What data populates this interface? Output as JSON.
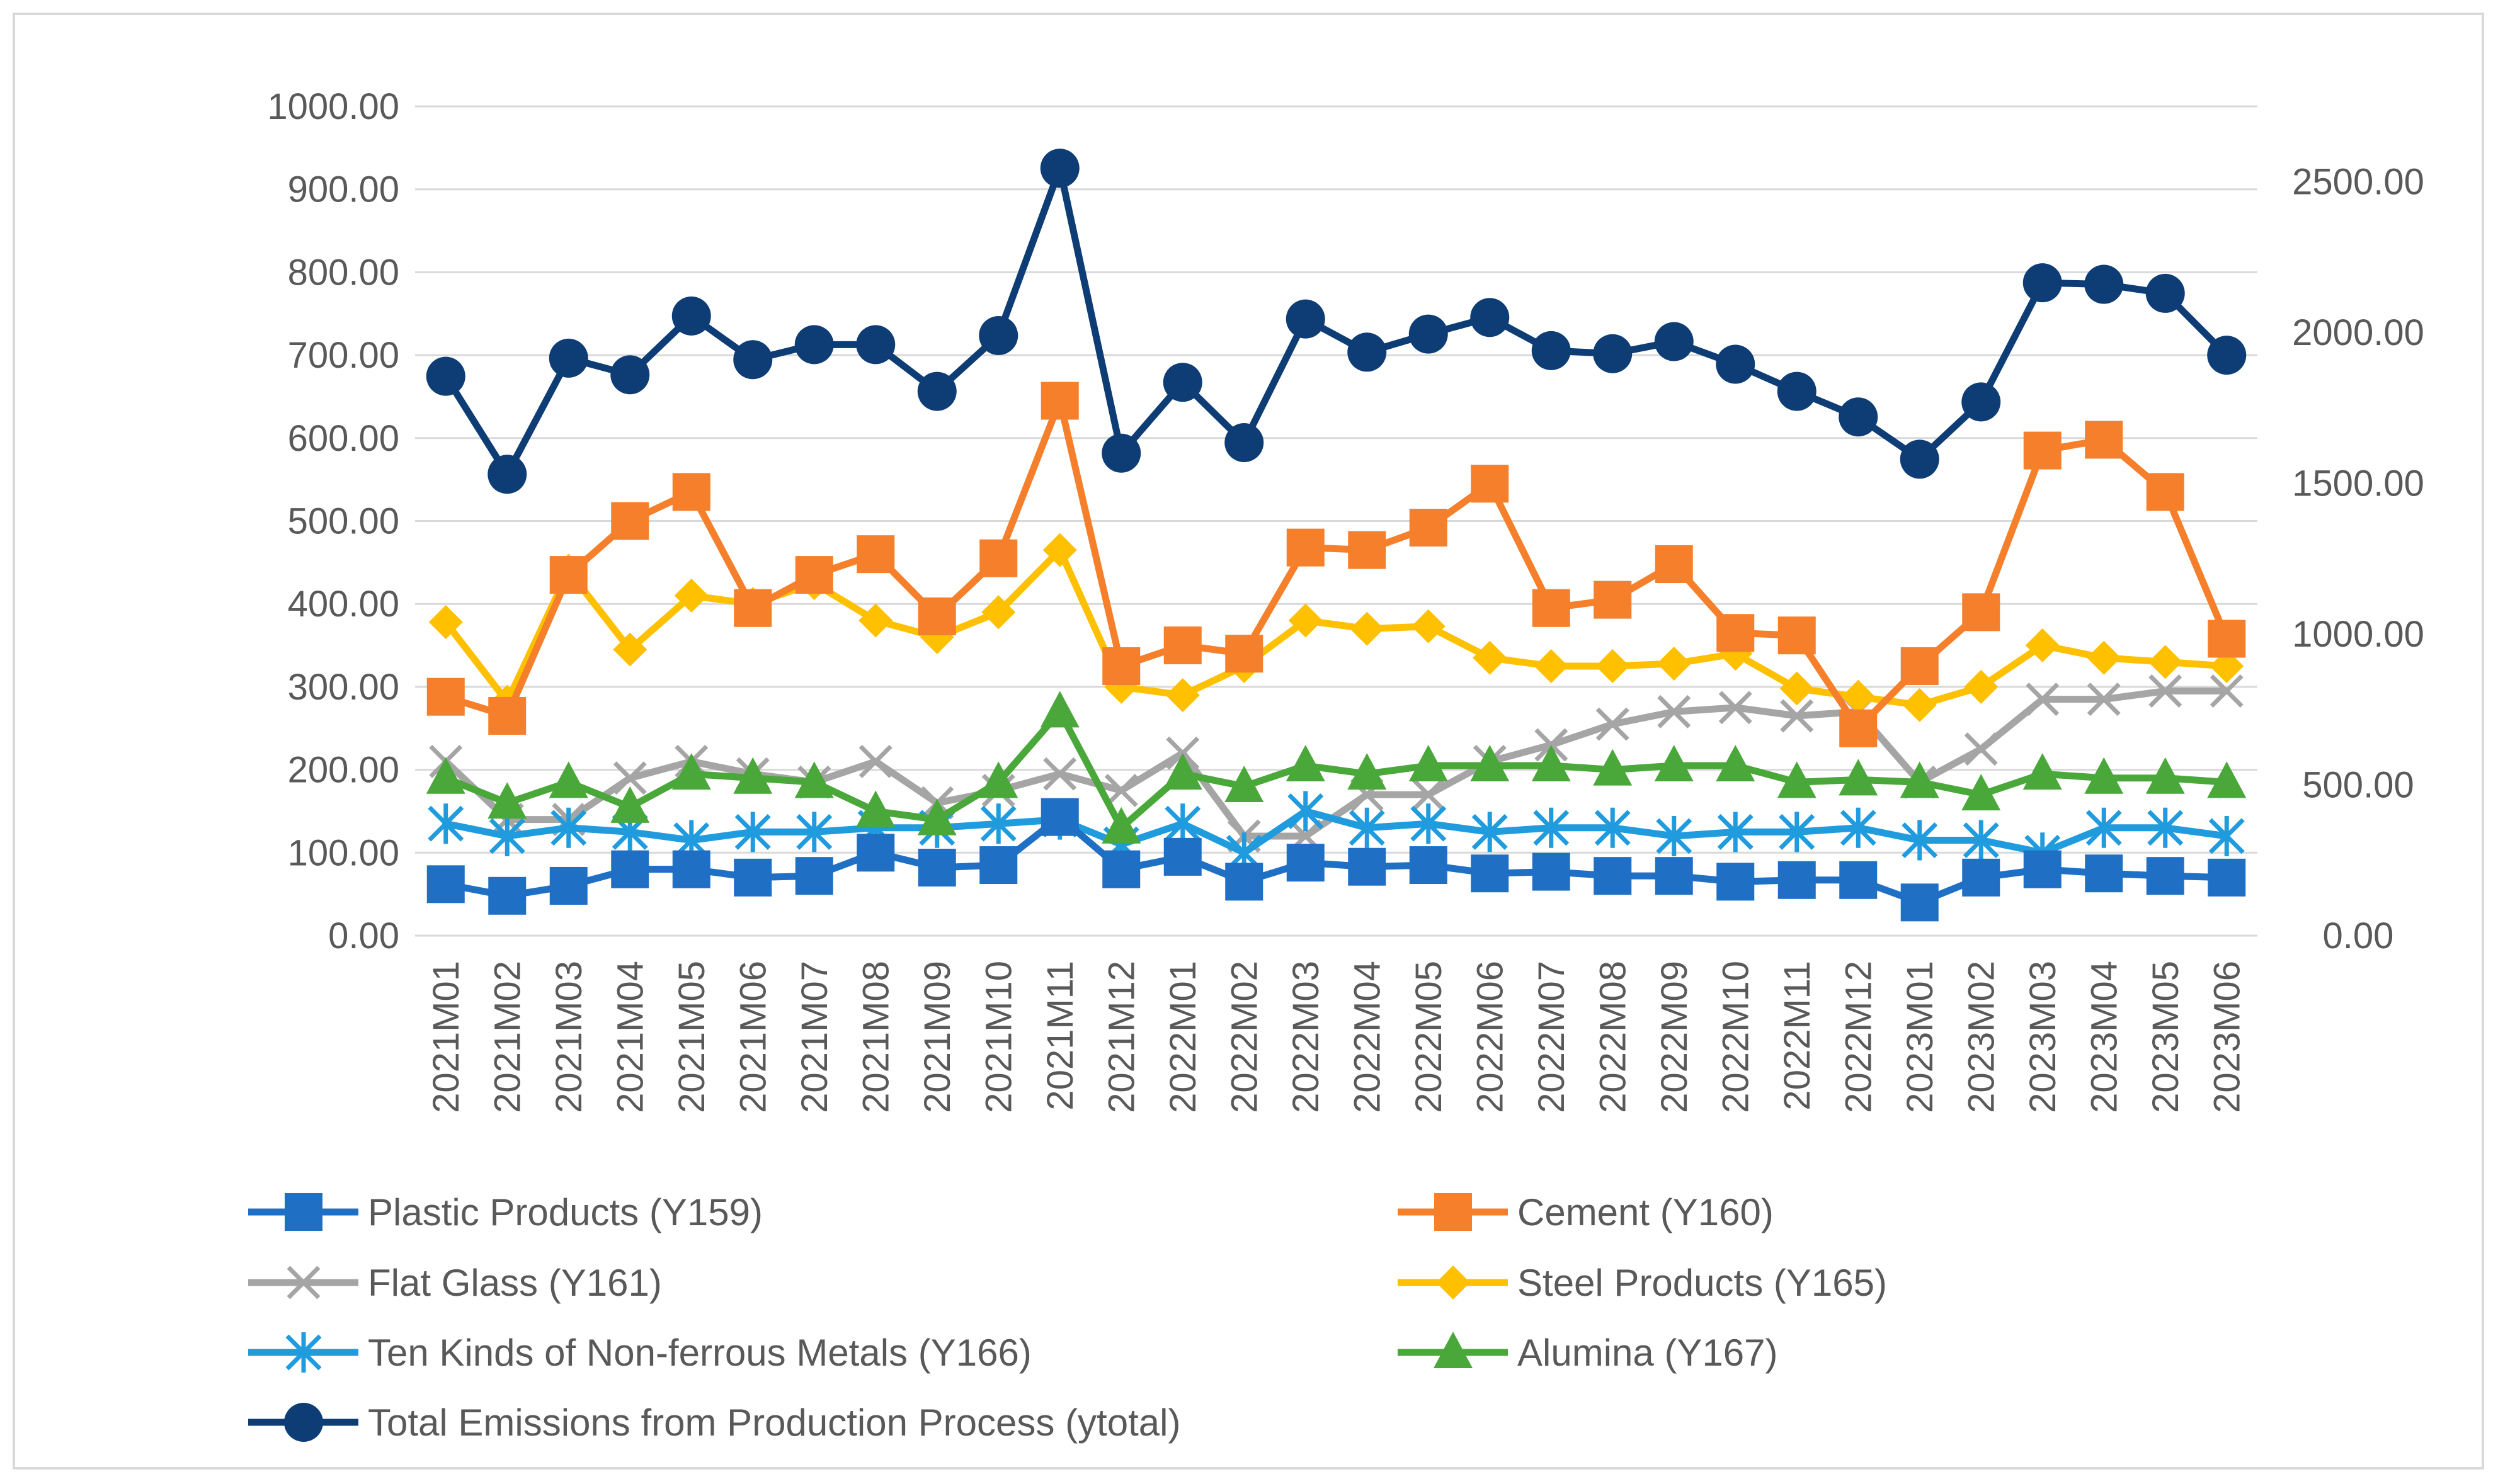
{
  "chart_data": {
    "type": "line",
    "title": "",
    "categories": [
      "2021M01",
      "2021M02",
      "2021M03",
      "2021M04",
      "2021M05",
      "2021M06",
      "2021M07",
      "2021M08",
      "2021M09",
      "2021M10",
      "2021M11",
      "2021M12",
      "2022M01",
      "2022M02",
      "2022M03",
      "2022M04",
      "2022M05",
      "2022M06",
      "2022M07",
      "2022M08",
      "2022M09",
      "2022M10",
      "2022M11",
      "2022M12",
      "2023M01",
      "2023M02",
      "2023M03",
      "2023M04",
      "2023M05",
      "2023M06"
    ],
    "y_left": {
      "min": 0,
      "max": 1000,
      "ticks": [
        "0.00",
        "100.00",
        "200.00",
        "300.00",
        "400.00",
        "500.00",
        "600.00",
        "700.00",
        "800.00",
        "900.00",
        "1000.00"
      ]
    },
    "y_right": {
      "min": 0,
      "max": 2750,
      "ticks": [
        "0.00",
        "500.00",
        "1000.00",
        "1500.00",
        "2000.00",
        "2500.00"
      ]
    },
    "grid": true,
    "legend_position": "bottom",
    "series": [
      {
        "name": "Plastic Products (Y159)",
        "axis": "left",
        "color": "#1f6fc5",
        "marker": "square",
        "values": [
          62,
          48,
          60,
          80,
          80,
          70,
          72,
          100,
          82,
          85,
          143,
          80,
          95,
          65,
          88,
          83,
          85,
          75,
          77,
          72,
          72,
          65,
          67,
          67,
          40,
          70,
          80,
          75,
          72,
          70
        ]
      },
      {
        "name": "Cement (Y160)",
        "axis": "left",
        "color": "#f57f2a",
        "marker": "square",
        "values": [
          288,
          265,
          435,
          500,
          535,
          395,
          435,
          460,
          385,
          455,
          645,
          325,
          350,
          340,
          468,
          465,
          492,
          545,
          395,
          405,
          448,
          365,
          362,
          250,
          325,
          390,
          585,
          598,
          535,
          358
        ]
      },
      {
        "name": "Flat Glass (Y161)",
        "axis": "left",
        "color": "#a5a5a5",
        "marker": "x",
        "values": [
          210,
          140,
          140,
          190,
          210,
          195,
          185,
          210,
          160,
          175,
          195,
          175,
          220,
          120,
          120,
          170,
          170,
          210,
          230,
          255,
          270,
          275,
          265,
          270,
          185,
          225,
          285,
          285,
          295,
          295
        ]
      },
      {
        "name": "Steel Products (Y165)",
        "axis": "left",
        "color": "#ffc000",
        "marker": "diamond",
        "values": [
          378,
          282,
          440,
          345,
          410,
          400,
          425,
          380,
          360,
          390,
          465,
          300,
          290,
          325,
          380,
          370,
          373,
          335,
          325,
          325,
          328,
          340,
          298,
          288,
          278,
          300,
          350,
          335,
          330,
          325
        ]
      },
      {
        "name": "Ten Kinds of Non-ferrous Metals (Y166)",
        "axis": "left",
        "color": "#1f9bde",
        "marker": "asterisk",
        "values": [
          135,
          120,
          130,
          125,
          115,
          125,
          125,
          130,
          130,
          135,
          140,
          110,
          135,
          100,
          150,
          130,
          135,
          125,
          130,
          130,
          120,
          125,
          125,
          130,
          115,
          115,
          100,
          130,
          130,
          120
        ]
      },
      {
        "name": "Alumina (Y167)",
        "axis": "left",
        "color": "#4aa83a",
        "marker": "triangle",
        "values": [
          190,
          160,
          185,
          155,
          195,
          190,
          185,
          150,
          140,
          185,
          270,
          130,
          195,
          180,
          205,
          195,
          205,
          205,
          205,
          200,
          205,
          205,
          185,
          188,
          185,
          170,
          195,
          190,
          190,
          185
        ]
      },
      {
        "name": "Total Emissions from Production Process (ytotal)",
        "axis": "right",
        "color": "#0e3d75",
        "marker": "circle",
        "values": [
          1855,
          1530,
          1915,
          1860,
          2055,
          1910,
          1960,
          1960,
          1805,
          1990,
          2545,
          1600,
          1835,
          1635,
          2045,
          1935,
          1995,
          2050,
          1940,
          1930,
          1970,
          1895,
          1805,
          1720,
          1580,
          1770,
          2165,
          2160,
          2130,
          1925
        ]
      }
    ]
  }
}
